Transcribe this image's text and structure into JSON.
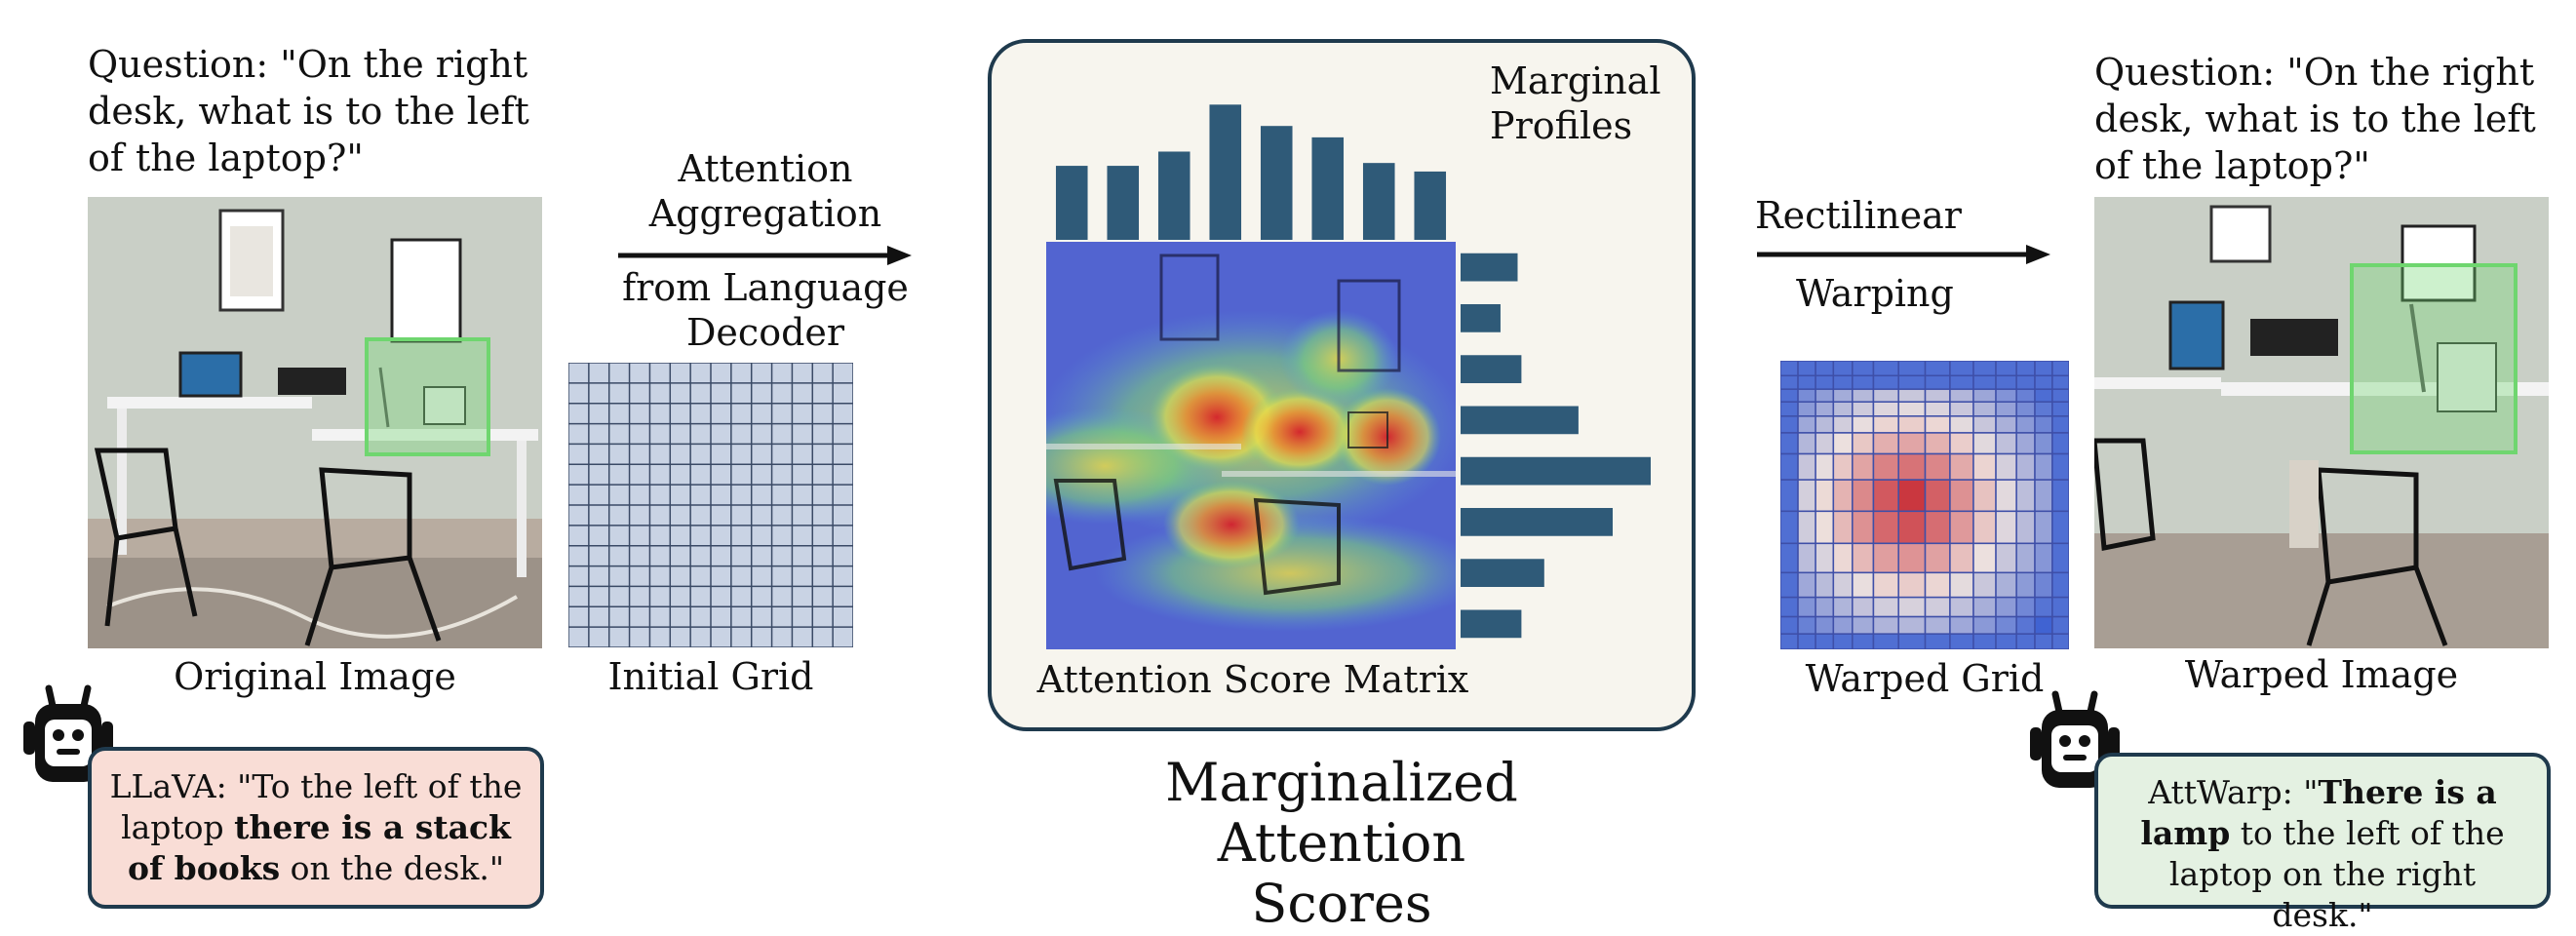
{
  "left": {
    "question": "Question: \"On the right desk, what is to the left of the laptop?\"",
    "image_caption": "Original Image",
    "grid_caption": "Initial Grid",
    "answer_prefix": "LLaVA: \"To the left of the laptop ",
    "answer_bold": "there is a stack of books",
    "answer_suffix": " on the desk.\""
  },
  "arrow1": {
    "line1": "Attention",
    "line2": "Aggregation",
    "line3": "from Language",
    "line4": "Decoder"
  },
  "center": {
    "profiles_label_1": "Marginal",
    "profiles_label_2": "Profiles",
    "matrix_caption": "Attention Score Matrix",
    "heading_1": "Marginalized Attention",
    "heading_2": "Scores",
    "column_profile": [
      0.52,
      0.52,
      0.62,
      0.95,
      0.8,
      0.72,
      0.54,
      0.48
    ],
    "row_profile": [
      0.3,
      0.21,
      0.32,
      0.62,
      1.0,
      0.8,
      0.44,
      0.32
    ],
    "bar_color": "#2f5a78"
  },
  "arrow2": {
    "line1": "Rectilinear",
    "line2": "Warping"
  },
  "right": {
    "question": "Question: \"On the right desk, what is to the left of the laptop?\"",
    "grid_caption": "Warped Grid",
    "image_caption": "Warped Image",
    "answer_prefix": "AttWarp: \"",
    "answer_bold": "There is a lamp",
    "answer_suffix": " to the left of the laptop on the right desk.\""
  },
  "colors": {
    "left_bubble": "#f9ddd6",
    "right_bubble": "#e4f1e2",
    "box_highlight": "#6fd66f",
    "grid_line": "#3a4a66",
    "grid_fill": "#c9d3e4"
  }
}
